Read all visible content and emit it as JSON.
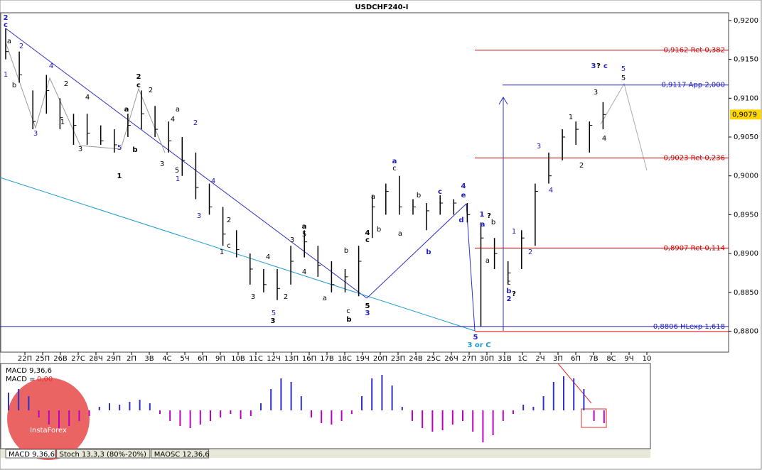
{
  "chart_data": {
    "type": "ohlc",
    "title": "USDCHF240-I",
    "high": [
      0.919,
      0.916,
      0.911,
      0.913,
      0.91,
      0.908,
      0.908,
      0.9065,
      0.906,
      0.908,
      0.911,
      0.909,
      0.907,
      0.905,
      0.903,
      0.899,
      0.896,
      0.893,
      0.89,
      0.888,
      0.888,
      0.891,
      0.893,
      0.891,
      0.889,
      0.888,
      0.891,
      0.8975,
      0.899,
      0.9,
      0.897,
      0.8965,
      0.8975,
      0.897,
      0.8965,
      0.894,
      0.892,
      0.889,
      0.893,
      0.899,
      0.903,
      0.906,
      0.907,
      0.907,
      0.9095
    ],
    "low": [
      0.915,
      0.912,
      0.906,
      0.908,
      0.906,
      0.904,
      0.904,
      0.904,
      0.903,
      0.905,
      0.906,
      0.905,
      0.903,
      0.9,
      0.897,
      0.895,
      0.891,
      0.8895,
      0.886,
      0.885,
      0.884,
      0.886,
      0.8895,
      0.887,
      0.885,
      0.885,
      0.8845,
      0.892,
      0.895,
      0.895,
      0.895,
      0.893,
      0.895,
      0.895,
      0.894,
      0.8806,
      0.888,
      0.886,
      0.888,
      0.891,
      0.899,
      0.902,
      0.904,
      0.903,
      0.906
    ],
    "close": [
      0.916,
      0.913,
      0.907,
      0.911,
      0.9075,
      0.9065,
      0.9055,
      0.9045,
      0.904,
      0.9065,
      0.908,
      0.906,
      0.9045,
      0.902,
      0.8985,
      0.896,
      0.8925,
      0.8905,
      0.888,
      0.886,
      0.8855,
      0.889,
      0.8915,
      0.8885,
      0.886,
      0.887,
      0.889,
      0.896,
      0.898,
      0.896,
      0.896,
      0.8955,
      0.8965,
      0.8965,
      0.895,
      0.892,
      0.89,
      0.8875,
      0.892,
      0.898,
      0.9,
      0.905,
      0.906,
      0.9065,
      0.9079
    ],
    "bar_color": "#000000",
    "ylim": [
      0.8773,
      0.921
    ],
    "yticks": [
      {
        "value": 0.92,
        "label": "0,9200"
      },
      {
        "value": 0.915,
        "label": "0,9150"
      },
      {
        "value": 0.91,
        "label": "0,9100"
      },
      {
        "value": 0.905,
        "label": "0,9050"
      },
      {
        "value": 0.9,
        "label": "0,9000"
      },
      {
        "value": 0.895,
        "label": "0,8950"
      },
      {
        "value": 0.89,
        "label": "0,8900"
      },
      {
        "value": 0.885,
        "label": "0,8850"
      },
      {
        "value": 0.88,
        "label": "0,8800"
      }
    ],
    "last_price": {
      "value": 0.9079,
      "label": "0,9079"
    },
    "x_tick_labels": [
      "22П",
      "25П",
      "26В",
      "27С",
      "28Ч",
      "29П",
      "2П",
      "3В",
      "4С",
      "5Ч",
      "6П",
      "9П",
      "10В",
      "11С",
      "12Ч",
      "13П",
      "16П",
      "17В",
      "18С",
      "19Ч",
      "20П",
      "23П",
      "24В",
      "25С",
      "26Ч",
      "27П",
      "30П",
      "31В",
      "1С",
      "2Ч",
      "3П",
      "6П",
      "7В",
      "8С",
      "9Ч",
      "10"
    ],
    "levels": [
      {
        "value": 0.9162,
        "label": "0,9162 Ret 0,382",
        "color": "#cc0000"
      },
      {
        "value": 0.9117,
        "label": "0,9117 App 2,000",
        "color": "#2020c0"
      },
      {
        "value": 0.9023,
        "label": "0,9023 Ret 0,236",
        "color": "#cc0000"
      },
      {
        "value": 0.8907,
        "label": "0,8907 Ret 0,114",
        "color": "#cc0000"
      },
      {
        "value": 0.8806,
        "label": "0,8806 HLexp 1,618",
        "color": "#2020c0"
      }
    ],
    "wave_labels": [
      {
        "text": "2",
        "color": "#2020c0",
        "bold": true
      },
      {
        "text": "c",
        "color": "#2020c0",
        "bold": true
      },
      {
        "text": "1",
        "color": "#2020c0"
      },
      {
        "text": "2",
        "color": "#2020c0"
      },
      {
        "text": "4",
        "color": "#2020c0"
      },
      {
        "text": "3",
        "color": "#2020c0"
      },
      {
        "text": "5",
        "color": "#2020c0"
      },
      {
        "text": "1",
        "color": "#2020c0"
      },
      {
        "text": "2",
        "color": "#2020c0"
      },
      {
        "text": "4",
        "color": "#2020c0"
      },
      {
        "text": "3",
        "color": "#2020c0"
      },
      {
        "text": "5",
        "color": "#2020c0"
      },
      {
        "text": "3",
        "color": "#2020c0",
        "bold": true
      },
      {
        "text": "a",
        "color": "#2020c0",
        "bold": true
      },
      {
        "text": "c",
        "color": "#2020c0",
        "bold": true
      },
      {
        "text": "b",
        "color": "#2020c0",
        "bold": true
      },
      {
        "text": "d",
        "color": "#2020c0",
        "bold": true
      },
      {
        "text": "4",
        "color": "#2020c0",
        "bold": true
      },
      {
        "text": "e",
        "color": "#2020c0",
        "bold": true
      },
      {
        "text": "1",
        "color": "#2020c0",
        "bold": true
      },
      {
        "text": "a",
        "color": "#2020c0",
        "bold": true
      },
      {
        "text": "b",
        "color": "#2020c0",
        "bold": true
      },
      {
        "text": "2",
        "color": "#2020c0",
        "bold": true
      },
      {
        "text": "3",
        "color": "#2020c0"
      },
      {
        "text": "4",
        "color": "#2020c0"
      },
      {
        "text": "2",
        "color": "#2020c0"
      },
      {
        "text": "1",
        "color": "#2020c0"
      },
      {
        "text": "5",
        "color": "#2020c0",
        "bold": true
      },
      {
        "text": "3 or C",
        "color": "#1a9ad0",
        "bold": true
      },
      {
        "text": "3",
        "color": "#2020c0",
        "bold": true
      },
      {
        "text": "c",
        "color": "#2020c0",
        "bold": true
      },
      {
        "text": "5",
        "color": "#2020c0"
      },
      {
        "text": "2",
        "color": "#000000",
        "bold": true
      },
      {
        "text": "c",
        "color": "#000000",
        "bold": true
      },
      {
        "text": "a",
        "color": "#000000",
        "bold": true
      },
      {
        "text": "b",
        "color": "#000000",
        "bold": true
      },
      {
        "text": "1",
        "color": "#000000",
        "bold": true
      },
      {
        "text": "a",
        "color": "#000000",
        "bold": true
      },
      {
        "text": "4",
        "color": "#000000",
        "bold": true
      },
      {
        "text": "c",
        "color": "#000000",
        "bold": true
      },
      {
        "text": "5",
        "color": "#000000",
        "bold": true
      },
      {
        "text": "b",
        "color": "#000000",
        "bold": true
      },
      {
        "text": "3",
        "color": "#000000",
        "bold": true
      },
      {
        "text": "?",
        "color": "#000000",
        "bold": true
      },
      {
        "text": "?",
        "color": "#000000",
        "bold": true
      },
      {
        "text": "?",
        "color": "#000000",
        "bold": true
      },
      {
        "text": "3",
        "color": "#000000"
      },
      {
        "text": "1",
        "color": "#000000"
      },
      {
        "text": "4",
        "color": "#000000"
      },
      {
        "text": "2",
        "color": "#000000"
      },
      {
        "text": "5",
        "color": "#000000"
      },
      {
        "text": "3",
        "color": "#000000"
      },
      {
        "text": "4",
        "color": "#000000"
      },
      {
        "text": "2",
        "color": "#000000"
      },
      {
        "text": "1",
        "color": "#000000"
      },
      {
        "text": "3",
        "color": "#000000"
      },
      {
        "text": "4",
        "color": "#000000"
      },
      {
        "text": "a",
        "color": "#000000"
      },
      {
        "text": "5",
        "color": "#000000"
      },
      {
        "text": "2",
        "color": "#000000"
      },
      {
        "text": "3",
        "color": "#000000"
      },
      {
        "text": "2",
        "color": "#000000"
      },
      {
        "text": "4",
        "color": "#000000"
      },
      {
        "text": "3",
        "color": "#000000"
      },
      {
        "text": "5",
        "color": "#000000"
      },
      {
        "text": "2",
        "color": "#000000"
      },
      {
        "text": "1",
        "color": "#000000"
      },
      {
        "text": "c",
        "color": "#000000"
      },
      {
        "text": "a",
        "color": "#000000"
      },
      {
        "text": "b",
        "color": "#000000"
      },
      {
        "text": "c",
        "color": "#000000"
      },
      {
        "text": "a",
        "color": "#000000"
      },
      {
        "text": "b",
        "color": "#000000"
      },
      {
        "text": "a",
        "color": "#000000"
      },
      {
        "text": "b",
        "color": "#000000"
      },
      {
        "text": "c",
        "color": "#000000"
      },
      {
        "text": "a",
        "color": "#000000"
      },
      {
        "text": "b",
        "color": "#000000"
      },
      {
        "text": "c",
        "color": "#000000"
      },
      {
        "text": "4",
        "color": "#000000"
      },
      {
        "text": "a",
        "color": "#000000"
      },
      {
        "text": "b",
        "color": "#000000"
      }
    ],
    "macd": {
      "label": "MACD 9,36,6",
      "value_label": "MACD =",
      "value_text": "0,00",
      "values": [
        25,
        30,
        20,
        -10,
        -20,
        -25,
        -22,
        -15,
        -8,
        5,
        10,
        8,
        12,
        15,
        10,
        -5,
        -15,
        -22,
        -25,
        -20,
        -15,
        -10,
        -5,
        -12,
        -8,
        10,
        30,
        45,
        40,
        20,
        -10,
        -18,
        -20,
        -15,
        -5,
        20,
        45,
        50,
        35,
        5,
        -15,
        -25,
        -30,
        -28,
        -20,
        -15,
        -30,
        -45,
        -35,
        -15,
        -5,
        8,
        5,
        20,
        40,
        48,
        45,
        30,
        -15,
        -18
      ],
      "positive_color": "#3030c8",
      "negative_color": "#c000c0",
      "ylim": [
        -55,
        55
      ]
    },
    "tabs": [
      "MACD 9,36,6",
      "Stoch 13,3,3 (80%-20%)",
      "MAOSC 12,36,6"
    ],
    "watermark": "InstaForex"
  }
}
